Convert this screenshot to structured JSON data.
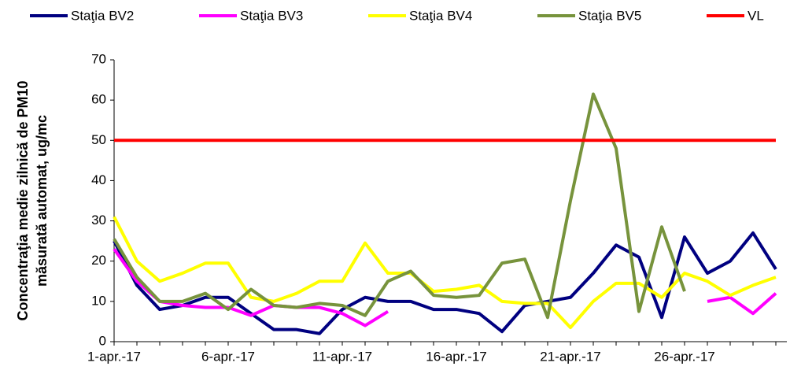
{
  "chart_data": {
    "type": "line",
    "ylabel": [
      "Concentraţia medie zilnică de PM10",
      "măsurată automat, ug/mc"
    ],
    "categories": [
      "1-apr.-17",
      null,
      null,
      null,
      null,
      "6-apr.-17",
      null,
      null,
      null,
      null,
      "11-apr.-17",
      null,
      null,
      null,
      null,
      "16-apr.-17",
      null,
      null,
      null,
      null,
      "21-apr.-17",
      null,
      null,
      null,
      null,
      "26-apr.-17",
      null,
      null,
      null,
      null
    ],
    "ylim": [
      0,
      70
    ],
    "yticks": [
      0,
      10,
      20,
      30,
      40,
      50,
      60,
      70
    ],
    "grid": false,
    "legend": "top",
    "series": [
      {
        "name": "Staţia BV2",
        "color": "#000080",
        "values": [
          25,
          14,
          8,
          9,
          11,
          11,
          7,
          3,
          3,
          2,
          8,
          11,
          10,
          10,
          8,
          8,
          7,
          2.5,
          9,
          10,
          11,
          17,
          24,
          21,
          6,
          26,
          17,
          20,
          27,
          18
        ]
      },
      {
        "name": "Staţia BV3",
        "color": "#ff00ff",
        "values": [
          23,
          15,
          10,
          9,
          8.5,
          8.5,
          6.5,
          9,
          8.5,
          8.5,
          7,
          4,
          7.5,
          null,
          null,
          null,
          null,
          null,
          null,
          null,
          null,
          null,
          null,
          null,
          null,
          null,
          10,
          11,
          7,
          12
        ]
      },
      {
        "name": "Staţia BV4",
        "color": "#ffff00",
        "values": [
          31,
          20,
          15,
          17,
          19.5,
          19.5,
          11,
          10,
          12,
          15,
          15,
          24.5,
          17,
          17,
          12.5,
          13,
          14,
          10,
          9.5,
          9.5,
          3.5,
          10,
          14.5,
          14.5,
          11,
          17,
          15,
          11.5,
          14,
          16
        ]
      },
      {
        "name": "Staţia BV5",
        "color": "#77933c",
        "values": [
          25.5,
          16,
          10,
          10,
          12,
          8,
          13,
          9,
          8.5,
          9.5,
          9,
          6.5,
          15,
          17.5,
          11.5,
          11,
          11.5,
          19.5,
          20.5,
          6,
          35,
          61.5,
          48,
          7.5,
          28.5,
          12.5,
          null,
          null,
          null,
          null
        ]
      },
      {
        "name": "VL",
        "color": "#ff0000",
        "values": [
          50,
          50,
          50,
          50,
          50,
          50,
          50,
          50,
          50,
          50,
          50,
          50,
          50,
          50,
          50,
          50,
          50,
          50,
          50,
          50,
          50,
          50,
          50,
          50,
          50,
          50,
          50,
          50,
          50,
          50
        ]
      }
    ]
  }
}
